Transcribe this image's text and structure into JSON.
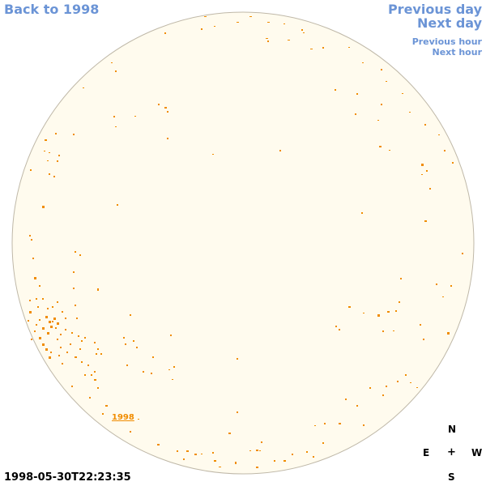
{
  "navigation": {
    "back_label": "Back to 1998",
    "previous_day_label": "Previous day",
    "next_day_label": "Next day",
    "previous_hour_label": "Previous hour",
    "next_hour_label": "Next hour"
  },
  "disk": {
    "fill_color": "#fffbee",
    "border_color": "#bfb8a8",
    "region_color": "#f08c00",
    "region_label": "1998"
  },
  "timestamp": "1998-05-30T22:23:35",
  "compass": {
    "north": "N",
    "east": "E",
    "center": "+",
    "west": "W",
    "south": "S"
  }
}
